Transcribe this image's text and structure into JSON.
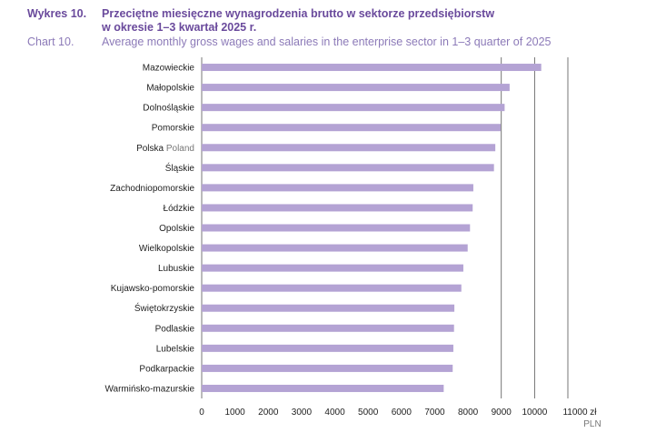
{
  "header": {
    "pl_number": "Wykres 10.",
    "pl_title_line1": "Przeciętne miesięczne wynagrodzenia brutto w sektorze przedsiębiorstw",
    "pl_title_line2": "w okresie 1–3 kwartał 2025 r.",
    "en_number": "Chart 10.",
    "en_title": "Average monthly gross wages and salaries in the enterprise sector in 1–3 quarter of 2025"
  },
  "chart_data": {
    "type": "bar",
    "orientation": "horizontal",
    "categories": [
      "Mazowieckie",
      "Małopolskie",
      "Dolnośląskie",
      "Pomorskie",
      "Polska",
      "Śląskie",
      "Zachodniopomorskie",
      "Łódzkie",
      "Opolskie",
      "Wielkopolskie",
      "Lubuskie",
      "Kujawsko-pomorskie",
      "Świętokrzyskie",
      "Podlaskie",
      "Lubelskie",
      "Podkarpackie",
      "Warmińsko-mazurskie"
    ],
    "category_suffix": {
      "Polska": "Poland"
    },
    "values": [
      10200,
      9250,
      9100,
      8980,
      8820,
      8780,
      8160,
      8140,
      8060,
      7990,
      7860,
      7800,
      7590,
      7580,
      7560,
      7540,
      7270
    ],
    "xlim": [
      0,
      11000
    ],
    "x_ticks": [
      0,
      1000,
      2000,
      3000,
      4000,
      5000,
      6000,
      7000,
      8000,
      9000,
      10000,
      11000
    ],
    "x_unit_pl": "zł",
    "x_unit_en": "PLN",
    "grid": "vertical every 1000 from 9000",
    "bar_color": "#b4a3d4"
  }
}
